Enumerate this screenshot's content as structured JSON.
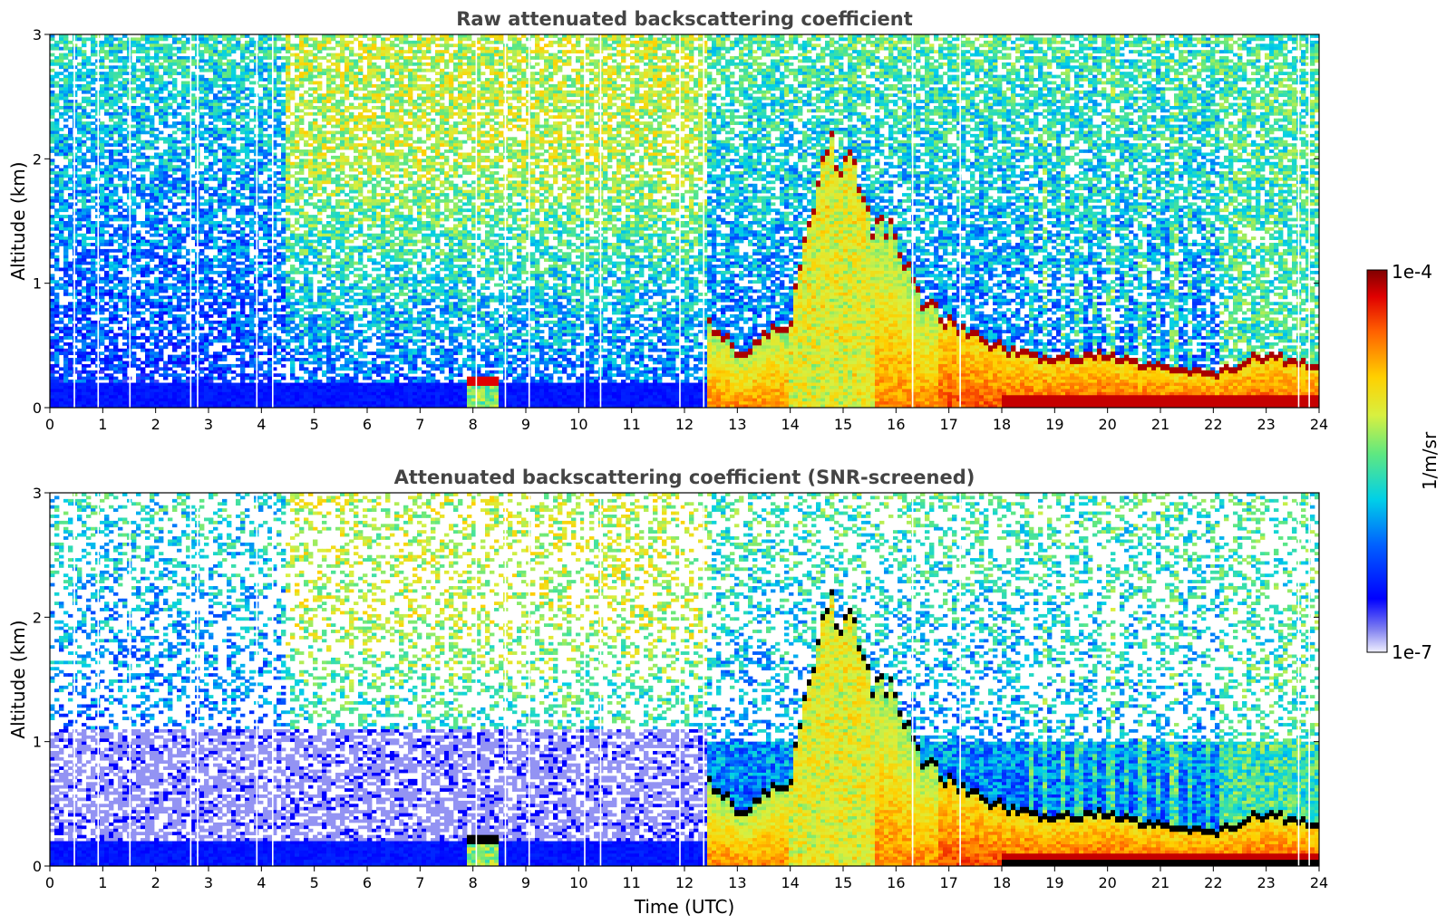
{
  "chart_data": [
    {
      "type": "heatmap",
      "title": "Raw attenuated backscattering coefficient",
      "ylabel": "Altitude (km)",
      "xlabel": "",
      "xlim": [
        0,
        24
      ],
      "ylim": [
        0,
        3
      ],
      "xticks": [
        "0",
        "1",
        "2",
        "3",
        "4",
        "5",
        "6",
        "7",
        "8",
        "9",
        "10",
        "11",
        "12",
        "13",
        "14",
        "15",
        "16",
        "17",
        "18",
        "19",
        "20",
        "21",
        "22",
        "23",
        "24"
      ],
      "yticks": [
        "0",
        "1",
        "2",
        "3"
      ],
      "features": {
        "nocturnal_boundary_layer": {
          "time": [
            0,
            12.4
          ],
          "top_km": 0.2
        },
        "aerosol_layer_top_km": [
          [
            12.4,
            0.72
          ],
          [
            13.1,
            0.45
          ],
          [
            13.6,
            0.62
          ],
          [
            14.0,
            0.72
          ],
          [
            14.5,
            1.8
          ],
          [
            14.8,
            2.15
          ],
          [
            15.2,
            1.9
          ],
          [
            15.5,
            1.5
          ],
          [
            16.0,
            1.4
          ],
          [
            16.5,
            0.9
          ],
          [
            17.0,
            0.7
          ],
          [
            18.0,
            0.5
          ],
          [
            19.0,
            0.4
          ],
          [
            20.0,
            0.45
          ],
          [
            21.0,
            0.35
          ],
          [
            22.0,
            0.3
          ],
          [
            23.0,
            0.45
          ],
          [
            24.0,
            0.35
          ]
        ],
        "low_layer_near_8h": {
          "time": [
            7.9,
            8.5
          ],
          "top_km": 0.25
        }
      }
    },
    {
      "type": "heatmap",
      "title": "Attenuated backscattering coefficient (SNR-screened)",
      "ylabel": "Altitude (km)",
      "xlabel": "Time (UTC)",
      "xlim": [
        0,
        24
      ],
      "ylim": [
        0,
        3
      ],
      "xticks": [
        "0",
        "1",
        "2",
        "3",
        "4",
        "5",
        "6",
        "7",
        "8",
        "9",
        "10",
        "11",
        "12",
        "13",
        "14",
        "15",
        "16",
        "17",
        "18",
        "19",
        "20",
        "21",
        "22",
        "23",
        "24"
      ],
      "yticks": [
        "0",
        "1",
        "2",
        "3"
      ]
    }
  ],
  "colorbar": {
    "label": "1/m/sr",
    "max_label": "1e-4",
    "min_label": "1e-7",
    "colors": [
      "#e8e8fa",
      "#1010ff",
      "#00c8e0",
      "#d8f040",
      "#ffd000",
      "#ff3000",
      "#800000"
    ]
  }
}
